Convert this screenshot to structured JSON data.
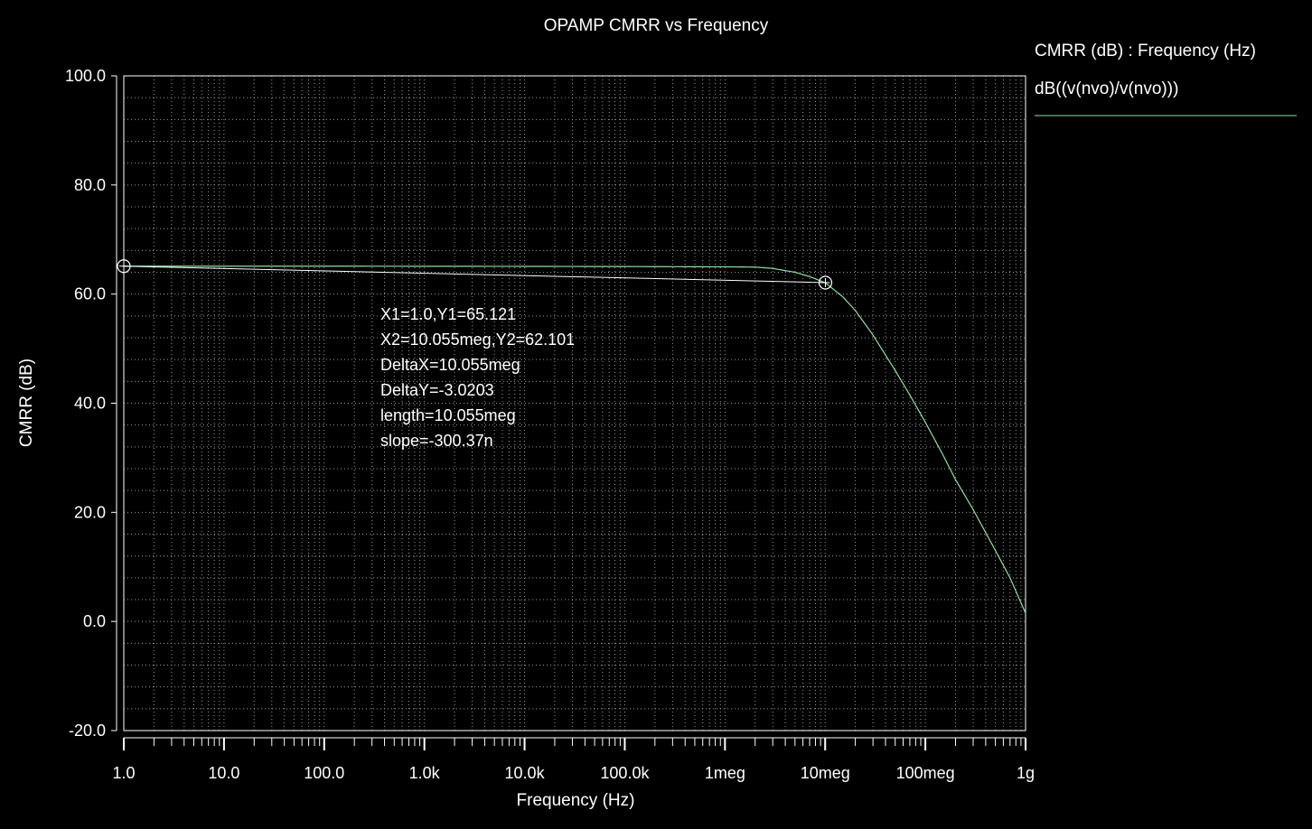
{
  "chart_data": {
    "type": "line",
    "title": "OPAMP CMRR vs Frequency",
    "xlabel": "Frequency (Hz)",
    "ylabel": "CMRR (dB)",
    "x_scale": "log",
    "xlim": [
      1,
      1000000000
    ],
    "ylim": [
      -20,
      100
    ],
    "grid": true,
    "legend_position": "top-right",
    "background_color": "#000000",
    "axis_color": "#ffffff",
    "y_ticks": [
      {
        "value": -20,
        "label": "-20.0"
      },
      {
        "value": 0,
        "label": "0.0"
      },
      {
        "value": 20,
        "label": "20.0"
      },
      {
        "value": 40,
        "label": "40.0"
      },
      {
        "value": 60,
        "label": "60.0"
      },
      {
        "value": 80,
        "label": "80.0"
      },
      {
        "value": 100,
        "label": "100.0"
      }
    ],
    "x_ticks": [
      {
        "value": 1,
        "label": "1.0"
      },
      {
        "value": 10,
        "label": "10.0"
      },
      {
        "value": 100,
        "label": "100.0"
      },
      {
        "value": 1000,
        "label": "1.0k"
      },
      {
        "value": 10000,
        "label": "10.0k"
      },
      {
        "value": 100000,
        "label": "100.0k"
      },
      {
        "value": 1000000,
        "label": "1meg"
      },
      {
        "value": 10000000,
        "label": "10meg"
      },
      {
        "value": 100000000,
        "label": "100meg"
      },
      {
        "value": 1000000000,
        "label": "1g"
      }
    ],
    "legend": {
      "header": "CMRR (dB) : Frequency (Hz)",
      "entry": "dB((v(nvo)/v(nvo)))"
    },
    "series": [
      {
        "name": "dB((v(nvo)/v(nvo)))",
        "color": "#8fe0a2",
        "x": [
          1,
          10,
          100,
          1000,
          10000,
          100000,
          1000000,
          2000000,
          3000000,
          5000000,
          7000000,
          10000000,
          15000000,
          20000000,
          30000000,
          50000000,
          70000000,
          100000000,
          150000000,
          200000000,
          300000000,
          500000000,
          700000000,
          1000000000
        ],
        "y": [
          65.12,
          65.12,
          65.12,
          65.1,
          65.08,
          65.05,
          65.0,
          64.95,
          64.7,
          64.0,
          63.2,
          62.1,
          59.5,
          57.0,
          52.5,
          46.0,
          41.5,
          36.5,
          30.5,
          26.0,
          20.5,
          13.0,
          8.0,
          1.5
        ]
      }
    ],
    "cursors": {
      "color": "#ffffff",
      "points": [
        {
          "x": 1,
          "y": 65.121
        },
        {
          "x": 10055000,
          "y": 62.101
        }
      ],
      "readout": [
        "X1=1.0,Y1=65.121",
        "X2=10.055meg,Y2=62.101",
        "DeltaX=10.055meg",
        "DeltaY=-3.0203",
        "length=10.055meg",
        "slope=-300.37n"
      ]
    }
  }
}
